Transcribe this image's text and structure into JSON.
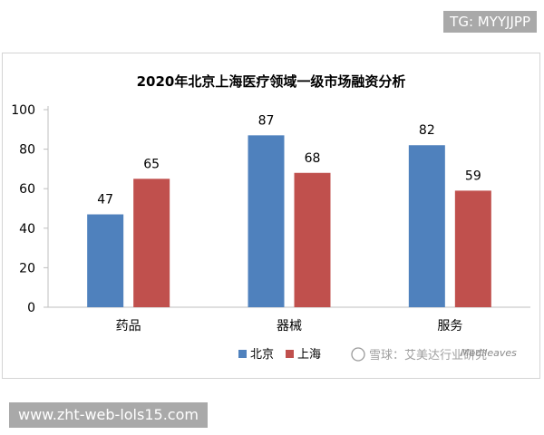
{
  "overlay": {
    "tg_label": "TG: MYYJJPP",
    "url_label": "www.zht-web-lols15.com",
    "watermark": "雪球：艾美达行业研究",
    "watermark_brand": "Medileaves"
  },
  "colors": {
    "beijing": "#4f81bd",
    "shanghai": "#c0504d",
    "axis": "#bfbfbf",
    "text": "#000000"
  },
  "chart_data": {
    "type": "bar",
    "title": "2020年北京上海医疗领域一级市场融资分析",
    "categories": [
      "药品",
      "器械",
      "服务"
    ],
    "series": [
      {
        "name": "北京",
        "values": [
          47,
          87,
          82
        ],
        "color": "#4f81bd"
      },
      {
        "name": "上海",
        "values": [
          65,
          68,
          59
        ],
        "color": "#c0504d"
      }
    ],
    "ylim": [
      0,
      100
    ],
    "yticks": [
      0,
      20,
      40,
      60,
      80,
      100
    ],
    "xlabel": "",
    "ylabel": "",
    "grid": false,
    "legend": "bottom",
    "data_labels": true
  }
}
